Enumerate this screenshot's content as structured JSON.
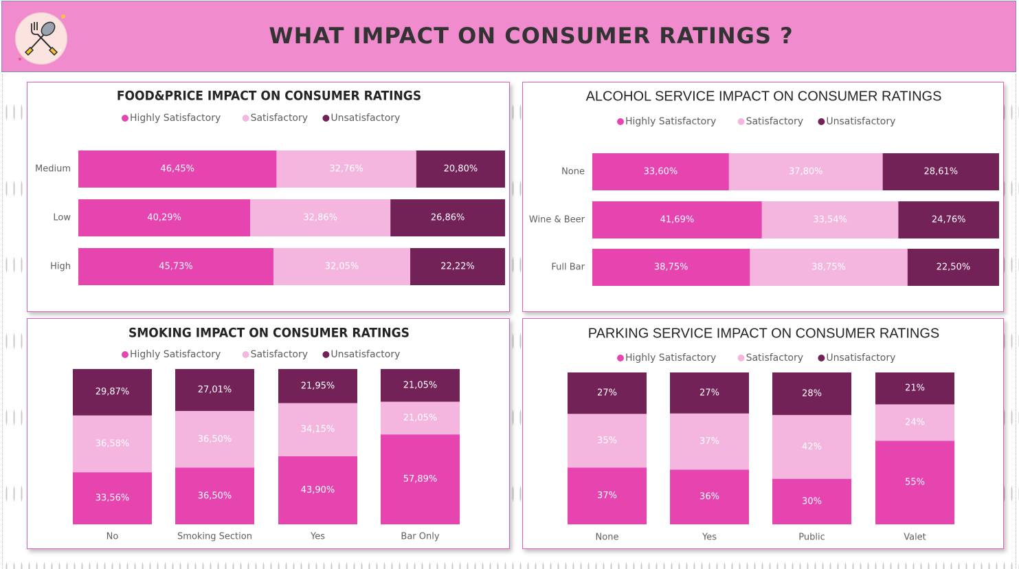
{
  "title": "WHAT IMPACT ON CONSUMER RATINGS ?",
  "colors": {
    "highly": "#e645b0",
    "satisfactory": "#f4b6de",
    "unsatisfactory": "#722256",
    "header": "#f08ccd"
  },
  "legend": [
    "Highly Satisfactory",
    "Satisfactory",
    "Unsatisfactory"
  ],
  "chart_data": [
    {
      "id": "food",
      "type": "bar",
      "orientation": "horizontal",
      "stacked": "100%",
      "title": "FOOD&PRICE IMPACT ON CONSUMER RATINGS",
      "categories": [
        "Medium",
        "Low",
        "High"
      ],
      "series": [
        {
          "name": "Highly Satisfactory",
          "values": [
            46.45,
            40.29,
            45.73
          ],
          "labels": [
            "46,45%",
            "40,29%",
            "45,73%"
          ]
        },
        {
          "name": "Satisfactory",
          "values": [
            32.76,
            32.86,
            32.05
          ],
          "labels": [
            "32,76%",
            "32,86%",
            "32,05%"
          ]
        },
        {
          "name": "Unsatisfactory",
          "values": [
            20.8,
            26.86,
            22.22
          ],
          "labels": [
            "20,80%",
            "26,86%",
            "22,22%"
          ]
        }
      ],
      "legend": "top-center"
    },
    {
      "id": "alcohol",
      "type": "bar",
      "orientation": "horizontal",
      "stacked": "100%",
      "title": "ALCOHOL SERVICE IMPACT ON CONSUMER RATINGS",
      "categories": [
        "None",
        "Wine & Beer",
        "Full Bar"
      ],
      "series": [
        {
          "name": "Highly Satisfactory",
          "values": [
            33.6,
            41.69,
            38.75
          ],
          "labels": [
            "33,60%",
            "41,69%",
            "38,75%"
          ]
        },
        {
          "name": "Satisfactory",
          "values": [
            37.8,
            33.54,
            38.75
          ],
          "labels": [
            "37,80%",
            "33,54%",
            "38,75%"
          ]
        },
        {
          "name": "Unsatisfactory",
          "values": [
            28.61,
            24.76,
            22.5
          ],
          "labels": [
            "28,61%",
            "24,76%",
            "22,50%"
          ]
        }
      ],
      "legend": "top-center"
    },
    {
      "id": "smoking",
      "type": "bar",
      "orientation": "vertical",
      "stacked": "100%",
      "title": "SMOKING IMPACT ON CONSUMER RATINGS",
      "categories": [
        "No",
        "Smoking Section",
        "Yes",
        "Bar Only"
      ],
      "series": [
        {
          "name": "Highly Satisfactory",
          "values": [
            33.56,
            36.5,
            43.9,
            57.89
          ],
          "labels": [
            "33,56%",
            "36,50%",
            "43,90%",
            "57,89%"
          ]
        },
        {
          "name": "Satisfactory",
          "values": [
            36.58,
            36.5,
            34.15,
            21.05
          ],
          "labels": [
            "36,58%",
            "36,50%",
            "34,15%",
            "21,05%"
          ]
        },
        {
          "name": "Unsatisfactory",
          "values": [
            29.87,
            27.01,
            21.95,
            21.05
          ],
          "labels": [
            "29,87%",
            "27,01%",
            "21,95%",
            "21,05%"
          ]
        }
      ],
      "legend": "top-center"
    },
    {
      "id": "parking",
      "type": "bar",
      "orientation": "vertical",
      "stacked": "100%",
      "title": "PARKING SERVICE IMPACT ON CONSUMER RATINGS",
      "categories": [
        "None",
        "Yes",
        "Public",
        "Valet"
      ],
      "series": [
        {
          "name": "Highly Satisfactory",
          "values": [
            37,
            36,
            30,
            55
          ],
          "labels": [
            "37%",
            "36%",
            "30%",
            "55%"
          ]
        },
        {
          "name": "Satisfactory",
          "values": [
            35,
            37,
            42,
            24
          ],
          "labels": [
            "35%",
            "37%",
            "42%",
            "24%"
          ]
        },
        {
          "name": "Unsatisfactory",
          "values": [
            27,
            27,
            28,
            21
          ],
          "labels": [
            "27%",
            "27%",
            "28%",
            "21%"
          ]
        }
      ],
      "legend": "top-center"
    }
  ]
}
